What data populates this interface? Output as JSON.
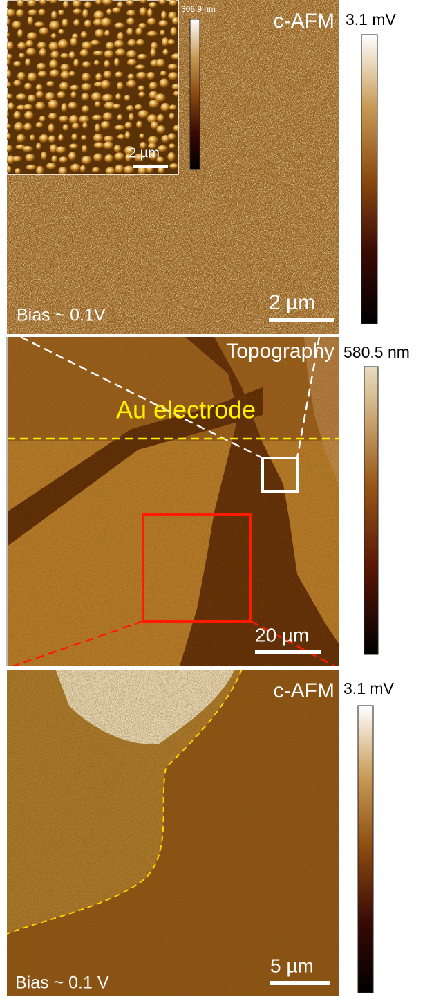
{
  "panels": [
    {
      "label": "c-AFM",
      "colorbar_max": "3.1 mV",
      "scale_bar": "2 µm",
      "bias": "Bias ~ 0.1V",
      "inset": {
        "colorbar_max": "306.9 nm",
        "scale_bar": "2 µm"
      }
    },
    {
      "label": "Topography",
      "colorbar_max": "580.5 nm",
      "region": "Au electrode",
      "scale_bar": "20 µm"
    },
    {
      "label": "c-AFM",
      "colorbar_max": "3.1 mV",
      "scale_bar": "5 µm",
      "bias": "Bias ~ 0.1 V"
    }
  ]
}
